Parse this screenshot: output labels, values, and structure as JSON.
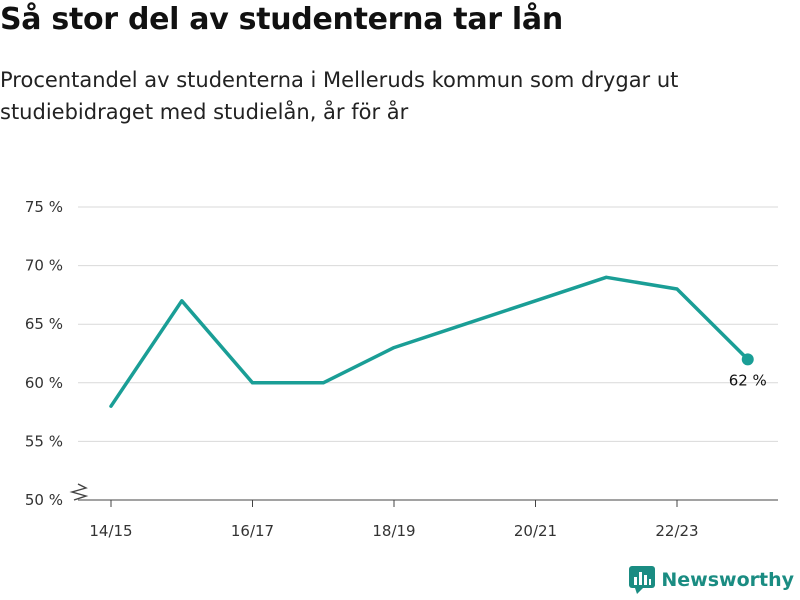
{
  "header": {
    "title": "Så stor del av studenterna tar lån",
    "subtitle": "Procentandel av studenterna i Melleruds kommun som drygar ut studiebidraget med studielån, år för år"
  },
  "brand": {
    "name": "Newsworthy",
    "logo_icon": "bar-chart-speech-bubble-icon",
    "color": "#1a8c82"
  },
  "chart_data": {
    "type": "line",
    "title": "Så stor del av studenterna tar lån",
    "subtitle": "Procentandel av studenterna i Melleruds kommun som drygar ut studiebidraget med studielån, år för år",
    "xlabel": "",
    "ylabel": "",
    "x": [
      "14/15",
      "15/16",
      "16/17",
      "17/18",
      "18/19",
      "19/20",
      "20/21",
      "21/22",
      "22/23",
      "23/24"
    ],
    "x_tick_labels": [
      "14/15",
      "16/17",
      "18/19",
      "20/21",
      "22/23"
    ],
    "series": [
      {
        "values": [
          58,
          67,
          60,
          60,
          63,
          65,
          67,
          69,
          68,
          62
        ],
        "color": "#1a9e96"
      }
    ],
    "ylim": [
      50,
      75
    ],
    "y_ticks": [
      50,
      55,
      60,
      65,
      70,
      75
    ],
    "y_tick_labels": [
      "50 %",
      "55 %",
      "60 %",
      "65 %",
      "70 %",
      "75 %"
    ],
    "y_axis_break": true,
    "grid": true,
    "last_point_label": "62 %"
  }
}
